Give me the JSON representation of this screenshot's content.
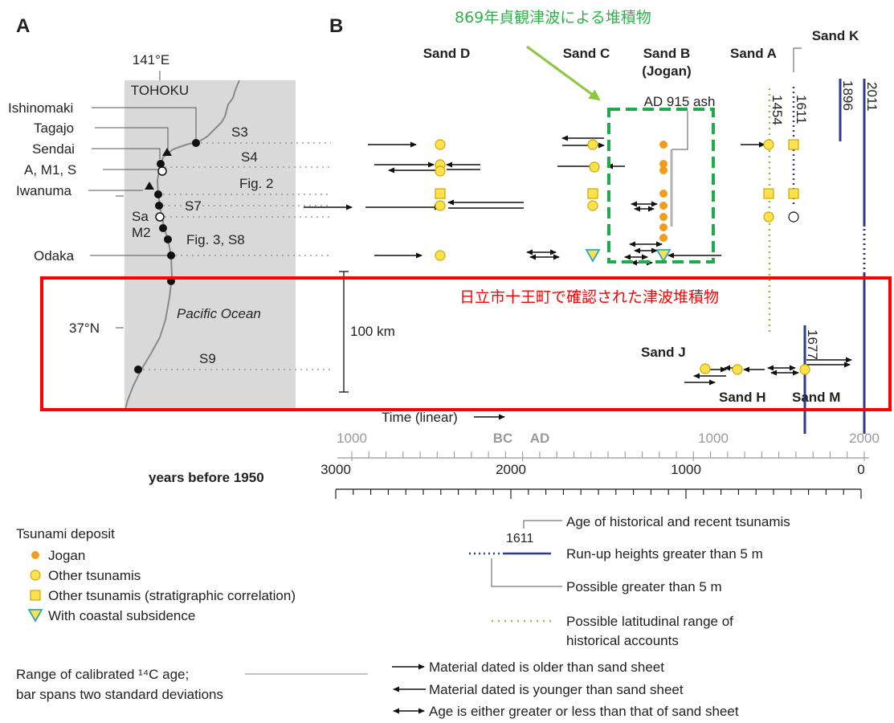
{
  "panel_a": {
    "label": "A",
    "longitude": "141°E",
    "region": "TOHOKU",
    "latitude": "37°N",
    "ocean": "Pacific Ocean",
    "scale_label": "100 km",
    "places": [
      "Ishinomaki",
      "Tagajo",
      "Sendai",
      "A, M1, S",
      "Iwanuma",
      "Sa",
      "M2",
      "Odaka"
    ],
    "sites": [
      "S3",
      "S4",
      "Fig. 2",
      "S7",
      "Fig. 3, S8",
      "S9"
    ]
  },
  "panel_b": {
    "label": "B",
    "sands": {
      "d": "Sand D",
      "c": "Sand C",
      "b": "Sand B",
      "b_sub": "(Jogan)",
      "a": "Sand A",
      "k": "Sand K",
      "j": "Sand J",
      "h": "Sand H",
      "m": "Sand M"
    },
    "ash_label": "AD 915 ash",
    "years": {
      "y1454": "1454",
      "y1611": "1611",
      "y1896": "1896",
      "y2011": "2011",
      "y1677": "1677"
    },
    "time_label": "Time (linear)",
    "calendar_axis": {
      "ticks": [
        "1000",
        "BC",
        "AD",
        "1000",
        "2000"
      ]
    },
    "bp_axis": {
      "title": "years before 1950",
      "ticks": [
        "3000",
        "2000",
        "1000",
        "0"
      ]
    }
  },
  "annotations": {
    "green_note": "869年貞観津波による堆積物",
    "red_note": "日立市十王町で確認された津波堆積物",
    "green_color": "#2db34a",
    "red_color": "#ff0000"
  },
  "legend": {
    "deposit_title": "Tsunami deposit",
    "jogan": "Jogan",
    "other": "Other tsunamis",
    "other_strat": "Other tsunamis (stratigraphic correlation)",
    "subsidence": "With coastal subsidence",
    "sample_year": "1611",
    "age_hist": "Age of historical and recent tsunamis",
    "runup": "Run-up heights greater than 5 m",
    "possible5": "Possible greater than 5 m",
    "lat_range_1": "Possible latitudinal range of",
    "lat_range_2": "historical accounts",
    "c14_1": "Range of calibrated ¹⁴C age;",
    "c14_2": "bar spans two standard deviations",
    "older": "Material dated is older than sand sheet",
    "younger": "Material dated is younger than sand sheet",
    "either": "Age is either greater or less than that of sand sheet"
  }
}
